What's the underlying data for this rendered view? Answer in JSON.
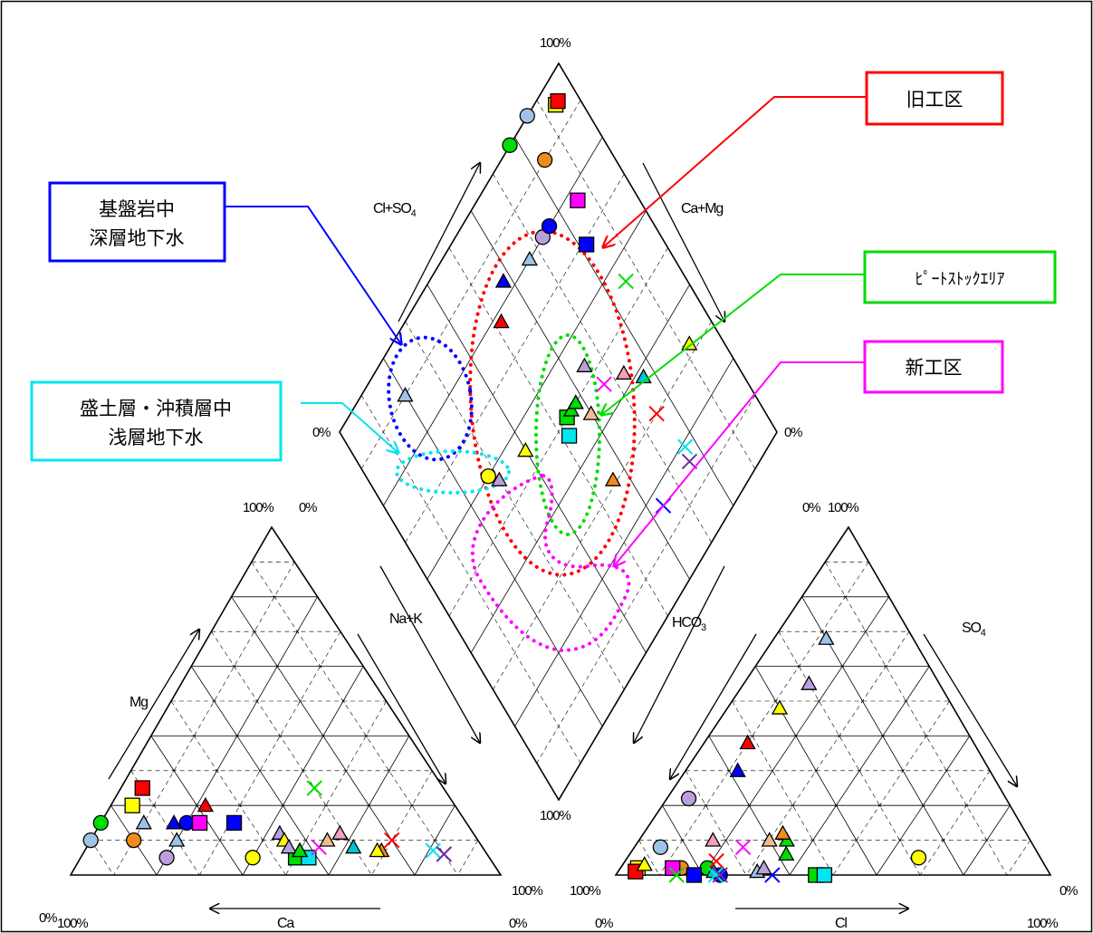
{
  "colors": {
    "red": "#ff0000",
    "blue": "#0000ff",
    "green": "#00dd00",
    "cyan": "#00e5ee",
    "magenta": "#ff00ff",
    "yellow": "#ffff00",
    "orange": "#f28a1e",
    "lightblue": "#9ec3e6",
    "lavender": "#b9a0dd",
    "pink": "#f2a0bc",
    "peach": "#f5bb90",
    "teal": "#00c4d2",
    "purple": "#7030a0"
  },
  "chart_data": {
    "type": "piper-diagram",
    "title": "",
    "labels": {
      "diamond_top": "100%",
      "diamond_left": "0%",
      "diamond_right": "0%",
      "diamond_bottom": "100%",
      "diamond_left_axis": "Cl+SO4",
      "diamond_right_axis": "Ca+Mg",
      "diamond_lower_left_axis": "Na+K",
      "diamond_lower_right_axis": "HCO3",
      "cation_apex_left": "100%",
      "cation_apex_right": "0%",
      "cation_bottom_left_outer": "0%",
      "cation_bottom_left": "100%",
      "cation_bottom_right": "100%",
      "cation_bottom_right_lower": "0%",
      "cation_left_axis": "Mg",
      "cation_bottom_axis": "Ca",
      "anion_apex_left": "0%",
      "anion_apex_right": "100%",
      "anion_bottom_left_outer": "100%",
      "anion_bottom_left": "0%",
      "anion_bottom_right_outer": "0%",
      "anion_bottom_right": "100%",
      "anion_right_axis": "SO4",
      "anion_bottom_axis": "Cl"
    },
    "groups": [
      {
        "name": "旧工区",
        "color": "red"
      },
      {
        "name": "基盤岩中\n深層地下水",
        "color": "blue"
      },
      {
        "name": "ﾋﾟｰﾄｽﾄｯｸｴﾘｱ",
        "color": "green"
      },
      {
        "name": "新工区",
        "color": "magenta"
      },
      {
        "name": "盛土層・沖積層中\n浅層地下水",
        "color": "cyan"
      }
    ],
    "points": [
      {
        "id": 1,
        "marker": "triangle",
        "color": "lightblue",
        "cation": {
          "ca": 75,
          "mg": 15
        },
        "anion": {
          "cl": 12,
          "so4": 68
        }
      },
      {
        "id": 2,
        "marker": "triangle",
        "color": "lavender",
        "cation": {
          "ca": 45,
          "mg": 12
        },
        "anion": {
          "cl": 15,
          "so4": 55
        }
      },
      {
        "id": 3,
        "marker": "triangle",
        "color": "yellow",
        "cation": {
          "ca": 45,
          "mg": 10
        },
        "anion": {
          "cl": 12,
          "so4": 48
        }
      },
      {
        "id": 4,
        "marker": "circle",
        "color": "yellow",
        "cation": {
          "ca": 55,
          "mg": 5
        },
        "anion": {
          "cl": 67,
          "so4": 5
        }
      },
      {
        "id": 5,
        "marker": "circle",
        "color": "green",
        "cation": {
          "ca": 85,
          "mg": 15
        },
        "anion": {
          "cl": 20,
          "so4": 2
        }
      },
      {
        "id": 6,
        "marker": "circle",
        "color": "lightblue",
        "cation": {
          "ca": 90,
          "mg": 10
        },
        "anion": {
          "cl": 6,
          "so4": 8
        }
      },
      {
        "id": 7,
        "marker": "circle",
        "color": "orange",
        "cation": {
          "ca": 80,
          "mg": 10
        },
        "anion": {
          "cl": 14,
          "so4": 2
        }
      },
      {
        "id": 8,
        "marker": "circle",
        "color": "lavender",
        "cation": {
          "ca": 75,
          "mg": 5
        },
        "anion": {
          "cl": 5,
          "so4": 22
        }
      },
      {
        "id": 9,
        "marker": "triangle",
        "color": "blue",
        "cation": {
          "ca": 68,
          "mg": 15
        },
        "anion": {
          "cl": 12,
          "so4": 30
        }
      },
      {
        "id": 10,
        "marker": "triangle",
        "color": "red",
        "cation": {
          "ca": 58,
          "mg": 20
        },
        "anion": {
          "cl": 10,
          "so4": 38
        }
      },
      {
        "id": 11,
        "marker": "square",
        "color": "green",
        "cation": {
          "ca": 45,
          "mg": 5
        },
        "anion": {
          "cl": 46,
          "so4": 0
        }
      },
      {
        "id": 12,
        "marker": "square",
        "color": "cyan",
        "cation": {
          "ca": 42,
          "mg": 5
        },
        "anion": {
          "cl": 48,
          "so4": 0
        }
      },
      {
        "id": 13,
        "marker": "square",
        "color": "yellow",
        "cation": {
          "ca": 75,
          "mg": 20
        },
        "anion": {
          "cl": 4,
          "so4": 2
        }
      },
      {
        "id": 14,
        "marker": "square",
        "color": "red",
        "cation": {
          "ca": 70,
          "mg": 25
        },
        "anion": {
          "cl": 4,
          "so4": 1
        }
      },
      {
        "id": 15,
        "marker": "circle",
        "color": "blue",
        "cation": {
          "ca": 65,
          "mg": 15
        },
        "anion": {
          "cl": 24,
          "so4": 0
        }
      },
      {
        "id": 16,
        "marker": "square",
        "color": "magenta",
        "cation": {
          "ca": 62,
          "mg": 15
        },
        "anion": {
          "cl": 12,
          "so4": 2
        }
      },
      {
        "id": 17,
        "marker": "square",
        "color": "blue",
        "cation": {
          "ca": 54,
          "mg": 15
        },
        "anion": {
          "cl": 18,
          "so4": 0
        }
      },
      {
        "id": 18,
        "marker": "triangle",
        "color": "green",
        "cation": {
          "ca": 43,
          "mg": 7
        },
        "anion": {
          "cl": 34,
          "so4": 10
        }
      },
      {
        "id": 19,
        "marker": "x",
        "color": "magenta",
        "cation": {
          "ca": 38,
          "mg": 8
        },
        "anion": {
          "cl": 25,
          "so4": 8
        }
      },
      {
        "id": 20,
        "marker": "triangle",
        "color": "peach",
        "cation": {
          "ca": 35,
          "mg": 10
        },
        "anion": {
          "cl": 30,
          "so4": 10
        }
      },
      {
        "id": 21,
        "marker": "triangle",
        "color": "orange",
        "cation": {
          "ca": 24,
          "mg": 7
        },
        "anion": {
          "cl": 32,
          "so4": 12
        }
      },
      {
        "id": 22,
        "marker": "triangle",
        "color": "pink",
        "cation": {
          "ca": 31,
          "mg": 12
        },
        "anion": {
          "cl": 17,
          "so4": 10
        }
      },
      {
        "id": 23,
        "marker": "triangle",
        "color": "teal",
        "cation": {
          "ca": 30,
          "mg": 8
        },
        "anion": {
          "cl": 22,
          "so4": 1
        }
      },
      {
        "id": 24,
        "marker": "triangle",
        "color": "lightblue",
        "cation": {
          "ca": 70,
          "mg": 10
        },
        "anion": {
          "cl": 32,
          "so4": 1
        }
      },
      {
        "id": 25,
        "marker": "x",
        "color": "green",
        "cation": {
          "ca": 30,
          "mg": 25
        },
        "anion": {
          "cl": 14,
          "so4": 0
        }
      },
      {
        "id": 26,
        "marker": "x",
        "color": "red",
        "cation": {
          "ca": 20,
          "mg": 10
        },
        "anion": {
          "cl": 21,
          "so4": 4
        }
      },
      {
        "id": 27,
        "marker": "x",
        "color": "blue",
        "cation": {
          "ca": 10,
          "mg": 6
        },
        "anion": {
          "cl": 36,
          "so4": 0
        }
      },
      {
        "id": 28,
        "marker": "x",
        "color": "cyan",
        "cation": {
          "ca": 12,
          "mg": 7
        },
        "anion": {
          "cl": 23,
          "so4": 0
        }
      },
      {
        "id": 29,
        "marker": "x",
        "color": "purple",
        "cation": {
          "ca": 10,
          "mg": 6
        },
        "anion": {
          "cl": 24,
          "so4": 0
        }
      },
      {
        "id": 30,
        "marker": "triangle",
        "color": "lavender",
        "cation": {
          "ca": 45,
          "mg": 8
        },
        "anion": {
          "cl": 33,
          "so4": 2
        }
      },
      {
        "id": 31,
        "marker": "triangle",
        "color": "green",
        "cation": {
          "ca": 43,
          "mg": 7
        },
        "anion": {
          "cl": 36,
          "so4": 6
        }
      },
      {
        "id": 32,
        "marker": "triangle",
        "color": "yellow",
        "cation": {
          "ca": 25,
          "mg": 7
        },
        "anion": {
          "cl": 5,
          "so4": 3
        }
      }
    ]
  }
}
